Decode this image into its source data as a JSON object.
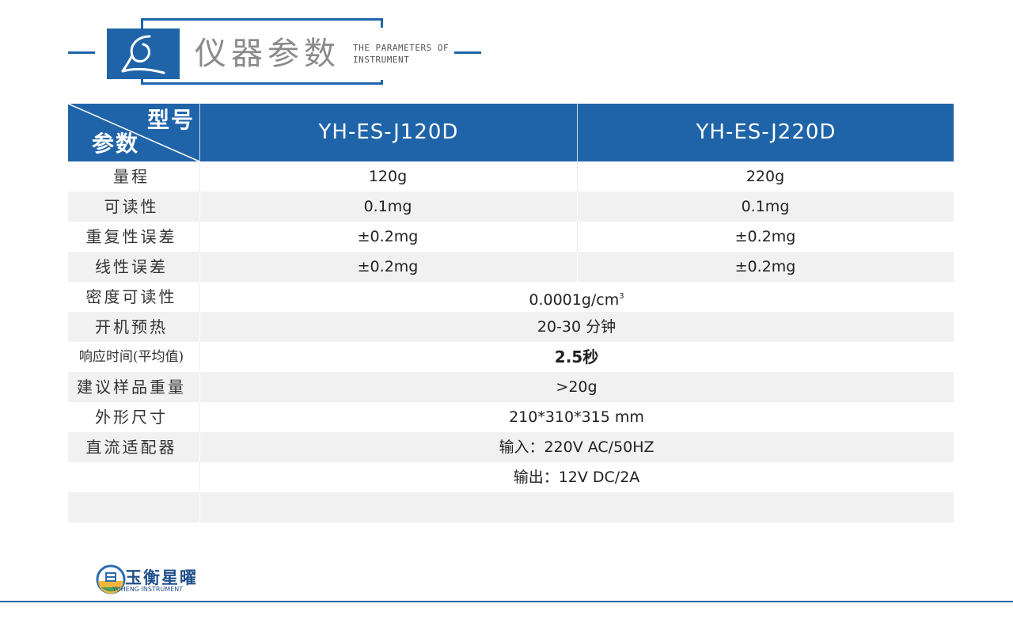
{
  "header": {
    "title": "仪器参数",
    "subtitle": "THE PARAMETERS OF INSTRUMENT",
    "icon": "quill-letter-icon"
  },
  "table": {
    "corner_top": "型号",
    "corner_bottom": "参数",
    "models": [
      "YH-ES-J120D",
      "YH-ES-J220D"
    ],
    "rows": [
      {
        "label": "量程",
        "v1": "120g",
        "v2": "220g"
      },
      {
        "label": "可读性",
        "v1": "0.1mg",
        "v2": "0.1mg"
      },
      {
        "label": "重复性误差",
        "v1": "±0.2mg",
        "v2": "±0.2mg"
      },
      {
        "label": "线性误差",
        "v1": "±0.2mg",
        "v2": "±0.2mg"
      },
      {
        "label": "密度可读性",
        "value": "0.0001g/cm",
        "sup": "3"
      },
      {
        "label": "开机预热",
        "value": "20-30 分钟"
      },
      {
        "label": "响应时间(平均值)",
        "value": "2.5秒"
      },
      {
        "label": "建议样品重量",
        "value": ">20g"
      },
      {
        "label": "外形尺寸",
        "value": "210*310*315 mm"
      },
      {
        "label": "直流适配器",
        "value": "输入：220V AC/50HZ"
      },
      {
        "label": "",
        "value": "输出：12V DC/2A"
      },
      {
        "label": "",
        "value": ""
      }
    ]
  },
  "brand": {
    "name_cn": "玉衡星曜",
    "name_en": "YUHENG INSTRUMENT"
  },
  "colors": {
    "accent": "#1f64a8",
    "row_shade": "#f1f1f1"
  }
}
